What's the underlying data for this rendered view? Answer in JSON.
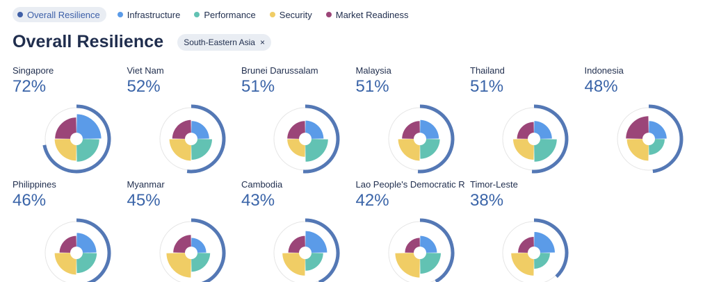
{
  "legend": [
    {
      "label": "Overall Resilience",
      "color": "#3f5fa6",
      "active": true
    },
    {
      "label": "Infrastructure",
      "color": "#5b9be8",
      "active": false
    },
    {
      "label": "Performance",
      "color": "#62c2b3",
      "active": false
    },
    {
      "label": "Security",
      "color": "#f0cd65",
      "active": false
    },
    {
      "label": "Market Readiness",
      "color": "#9b4578",
      "active": false
    }
  ],
  "title": "Overall Resilience",
  "filter_chip": {
    "label": "South-Eastern Asia",
    "close": "×"
  },
  "colors": {
    "overall_ring": "#5478b5",
    "track": "#e5e5e5",
    "infrastructure": "#5b9be8",
    "performance": "#62c2b3",
    "security": "#f0cd65",
    "market_readiness": "#9b4578"
  },
  "chart_data": {
    "type": "radial-donut",
    "title": "Overall Resilience",
    "filter": "South-Eastern Asia",
    "pillars": [
      "Infrastructure",
      "Performance",
      "Security",
      "Market Readiness"
    ],
    "countries": [
      {
        "name": "Singapore",
        "overall_label": "72%",
        "overall": 72,
        "infrastructure": 0.95,
        "performance": 0.85,
        "security": 0.8,
        "market_readiness": 0.78
      },
      {
        "name": "Viet Nam",
        "overall_label": "52%",
        "overall": 52,
        "infrastructure": 0.6,
        "performance": 0.75,
        "security": 0.8,
        "market_readiness": 0.65
      },
      {
        "name": "Brunei Darussalam",
        "overall_label": "51%",
        "overall": 51,
        "infrastructure": 0.62,
        "performance": 0.85,
        "security": 0.6,
        "market_readiness": 0.6
      },
      {
        "name": "Malaysia",
        "overall_label": "51%",
        "overall": 51,
        "infrastructure": 0.65,
        "performance": 0.7,
        "security": 0.8,
        "market_readiness": 0.6
      },
      {
        "name": "Thailand",
        "overall_label": "51%",
        "overall": 51,
        "infrastructure": 0.6,
        "performance": 0.85,
        "security": 0.75,
        "market_readiness": 0.55
      },
      {
        "name": "Indonesia",
        "overall_label": "48%",
        "overall": 48,
        "infrastructure": 0.6,
        "performance": 0.5,
        "security": 0.8,
        "market_readiness": 0.85
      },
      {
        "name": "Philippines",
        "overall_label": "46%",
        "overall": 46,
        "infrastructure": 0.7,
        "performance": 0.72,
        "security": 0.8,
        "market_readiness": 0.55
      },
      {
        "name": "Myanmar",
        "overall_label": "45%",
        "overall": 45,
        "infrastructure": 0.45,
        "performance": 0.65,
        "security": 0.95,
        "market_readiness": 0.6
      },
      {
        "name": "Cambodia",
        "overall_label": "43%",
        "overall": 43,
        "infrastructure": 0.8,
        "performance": 0.6,
        "security": 0.85,
        "market_readiness": 0.55
      },
      {
        "name": "Lao People's Democratic R",
        "overall_label": "42%",
        "overall": 42,
        "infrastructure": 0.55,
        "performance": 0.75,
        "security": 0.95,
        "market_readiness": 0.45
      },
      {
        "name": "Timor-Leste",
        "overall_label": "38%",
        "overall": 38,
        "infrastructure": 0.75,
        "performance": 0.5,
        "security": 0.85,
        "market_readiness": 0.5
      }
    ]
  }
}
